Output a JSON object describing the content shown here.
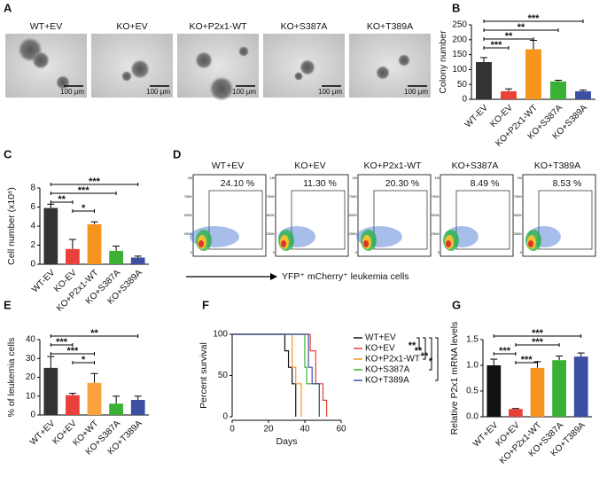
{
  "panel_labels": [
    "A",
    "B",
    "C",
    "D",
    "E",
    "F",
    "G"
  ],
  "micrographs": {
    "labels": [
      "WT+EV",
      "KO+EV",
      "KO+P2x1-WT",
      "KO+S387A",
      "KO+T389A"
    ],
    "scale_bar": "100 μm"
  },
  "flow": {
    "labels": [
      "WT+EV",
      "KO+EV",
      "KO+P2x1-WT",
      "KO+S387A",
      "KO+T389A"
    ],
    "percentages": [
      "24.10 %",
      "11.30 %",
      "20.30 %",
      "8.49 %",
      "8.53 %"
    ],
    "yticks": [
      "1M",
      "750K",
      "500K",
      "250K",
      "0"
    ],
    "caption": "YFP⁺ mCherry⁺ leukemia cells"
  },
  "chart_data": [
    {
      "type": "bar",
      "ylabel": "Colony number",
      "categories": [
        "WT-EV",
        "KO-EV",
        "KO+P2x1-WT",
        "KO+S387A",
        "KO+S389A"
      ],
      "values": [
        125,
        27,
        168,
        60,
        27
      ],
      "errors": [
        15,
        8,
        30,
        4,
        4
      ],
      "colors": [
        "#333333",
        "#e8413a",
        "#f7941d",
        "#3ab034",
        "#3d4fa3"
      ],
      "ylim": [
        0,
        250
      ],
      "yticks": [
        0,
        50,
        100,
        150,
        200,
        250
      ],
      "comparisons": [
        {
          "pair": [
            0,
            4
          ],
          "label": "***"
        },
        {
          "pair": [
            0,
            3
          ],
          "label": "**"
        },
        {
          "pair": [
            0,
            2
          ],
          "label": "**"
        },
        {
          "pair": [
            0,
            1
          ],
          "label": "***"
        }
      ]
    },
    {
      "type": "bar",
      "ylabel": "Cell number (x10⁶)",
      "categories": [
        "WT-EV",
        "KO-EV",
        "KO+P2x1-WT",
        "KO+S387A",
        "KO+S389A"
      ],
      "values": [
        5.9,
        1.6,
        4.2,
        1.4,
        0.7
      ],
      "errors": [
        0.4,
        1.0,
        0.25,
        0.5,
        0.15
      ],
      "colors": [
        "#333333",
        "#e8413a",
        "#f7941d",
        "#3ab034",
        "#3d4fa3"
      ],
      "ylim": [
        0,
        8
      ],
      "yticks": [
        0,
        2,
        4,
        6,
        8
      ],
      "comparisons": [
        {
          "pair": [
            0,
            4
          ],
          "label": "***"
        },
        {
          "pair": [
            0,
            3
          ],
          "label": "***"
        },
        {
          "pair": [
            0,
            1
          ],
          "label": "**"
        },
        {
          "pair": [
            1,
            2
          ],
          "label": "*"
        }
      ]
    },
    {
      "type": "bar",
      "ylabel": "% of leukemia cells",
      "categories": [
        "WT+EV",
        "KO+EV",
        "KO+WT",
        "KO+S387A",
        "KO+T389A"
      ],
      "values": [
        25,
        10.5,
        17,
        6,
        8
      ],
      "errors": [
        6,
        1,
        5,
        4,
        2
      ],
      "colors": [
        "#333333",
        "#e8413a",
        "#f9a23e",
        "#3ab034",
        "#3d4fa3"
      ],
      "ylim": [
        0,
        40
      ],
      "yticks": [
        0,
        10,
        20,
        30,
        40
      ],
      "comparisons": [
        {
          "pair": [
            0,
            4
          ],
          "label": "**"
        },
        {
          "pair": [
            0,
            1
          ],
          "label": "***"
        },
        {
          "pair": [
            0,
            2
          ],
          "label": "***"
        },
        {
          "pair": [
            1,
            2
          ],
          "label": "*"
        }
      ]
    },
    {
      "type": "line",
      "step": true,
      "xlabel": "Days",
      "ylabel": "Percent survival",
      "xlim": [
        0,
        60
      ],
      "xticks": [
        0,
        20,
        40,
        60
      ],
      "ylim": [
        0,
        100
      ],
      "yticks": [
        0,
        50,
        100
      ],
      "series": [
        {
          "name": "WT+EV",
          "color": "#111111",
          "x": [
            0,
            29,
            31,
            33,
            35
          ],
          "values": [
            100,
            80,
            60,
            40,
            0
          ]
        },
        {
          "name": "KO+EV",
          "color": "#e8413a",
          "x": [
            0,
            43,
            46,
            50,
            52
          ],
          "values": [
            100,
            80,
            40,
            20,
            0
          ]
        },
        {
          "name": "KO+P2x1-WT",
          "color": "#f7941d",
          "x": [
            0,
            33,
            35,
            38
          ],
          "values": [
            100,
            60,
            40,
            0
          ]
        },
        {
          "name": "KO+S387A",
          "color": "#3ab034",
          "x": [
            0,
            40,
            41,
            48
          ],
          "values": [
            100,
            60,
            40,
            0
          ]
        },
        {
          "name": "KO+T389A",
          "color": "#3d4fa3",
          "x": [
            0,
            42,
            44,
            48
          ],
          "values": [
            100,
            60,
            40,
            0
          ]
        }
      ],
      "comparisons": [
        "**",
        "**",
        "**",
        "*"
      ]
    },
    {
      "type": "bar",
      "ylabel": "Relative P2x1 mRNA levels",
      "categories": [
        "WT+EV",
        "KO+EV",
        "KO+P2x1-WT",
        "KO+S387A",
        "KO+T389A"
      ],
      "values": [
        1.0,
        0.15,
        0.95,
        1.1,
        1.17
      ],
      "errors": [
        0.12,
        0.01,
        0.12,
        0.08,
        0.07
      ],
      "colors": [
        "#111111",
        "#e8413a",
        "#f7941d",
        "#3ab034",
        "#3d4fa3"
      ],
      "ylim": [
        0,
        1.5
      ],
      "yticks": [
        {
          "value": 0,
          "label": "0.0"
        },
        {
          "value": 0.5,
          "label": "0.5"
        },
        {
          "value": 1.0,
          "label": "1.0"
        },
        {
          "value": 1.5,
          "label": "1.5"
        }
      ],
      "comparisons": [
        {
          "pair": [
            0,
            4
          ],
          "label": "***"
        },
        {
          "pair": [
            1,
            3
          ],
          "label": "***"
        },
        {
          "pair": [
            0,
            1
          ],
          "label": "***"
        },
        {
          "pair": [
            1,
            2
          ],
          "label": "***"
        }
      ]
    }
  ]
}
